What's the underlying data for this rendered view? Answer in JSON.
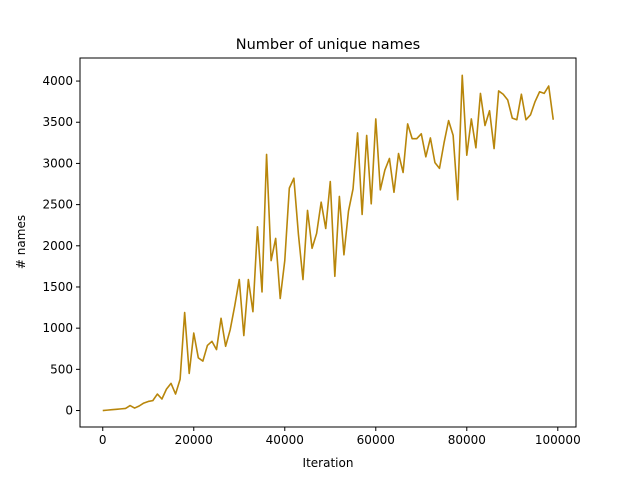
{
  "chart_data": {
    "type": "line",
    "title": "Number of unique names",
    "xlabel": "Iteration",
    "ylabel": "# names",
    "xlim": [
      -5000,
      104000
    ],
    "ylim": [
      -200,
      4280
    ],
    "xticks": [
      0,
      20000,
      40000,
      60000,
      80000,
      100000
    ],
    "yticks": [
      0,
      500,
      1000,
      1500,
      2000,
      2500,
      3000,
      3500,
      4000
    ],
    "grid": false,
    "series": [
      {
        "color": "#b8860b",
        "x": [
          0,
          1000,
          2000,
          3000,
          4000,
          5000,
          6000,
          7000,
          8000,
          9000,
          10000,
          11000,
          12000,
          13000,
          14000,
          15000,
          16000,
          17000,
          18000,
          19000,
          20000,
          21000,
          22000,
          23000,
          24000,
          25000,
          26000,
          27000,
          28000,
          29000,
          30000,
          31000,
          32000,
          33000,
          34000,
          35000,
          36000,
          37000,
          38000,
          39000,
          40000,
          41000,
          42000,
          43000,
          44000,
          45000,
          46000,
          47000,
          48000,
          49000,
          50000,
          51000,
          52000,
          53000,
          54000,
          55000,
          56000,
          57000,
          58000,
          59000,
          60000,
          61000,
          62000,
          63000,
          64000,
          65000,
          66000,
          67000,
          68000,
          69000,
          70000,
          71000,
          72000,
          73000,
          74000,
          75000,
          76000,
          77000,
          78000,
          79000,
          80000,
          81000,
          82000,
          83000,
          84000,
          85000,
          86000,
          87000,
          88000,
          89000,
          90000,
          91000,
          92000,
          93000,
          94000,
          95000,
          96000,
          97000,
          98000,
          99000
        ],
        "y": [
          0,
          5,
          10,
          15,
          20,
          25,
          60,
          30,
          55,
          90,
          110,
          120,
          200,
          140,
          260,
          330,
          200,
          380,
          1190,
          450,
          940,
          640,
          600,
          790,
          840,
          740,
          1120,
          780,
          980,
          1270,
          1590,
          910,
          1590,
          1200,
          2230,
          1440,
          3110,
          1820,
          2090,
          1360,
          1820,
          2700,
          2820,
          2140,
          1590,
          2430,
          1970,
          2150,
          2530,
          2210,
          2780,
          1630,
          2600,
          1890,
          2420,
          2690,
          3370,
          2380,
          3340,
          2510,
          3540,
          2680,
          2920,
          3060,
          2650,
          3120,
          2890,
          3480,
          3300,
          3300,
          3360,
          3080,
          3310,
          3010,
          2940,
          3250,
          3520,
          3340,
          2560,
          4070,
          3100,
          3540,
          3190,
          3850,
          3460,
          3640,
          3180,
          3880,
          3840,
          3770,
          3550,
          3530,
          3840,
          3530,
          3590,
          3750,
          3870,
          3850,
          3940,
          3530
        ]
      }
    ]
  }
}
